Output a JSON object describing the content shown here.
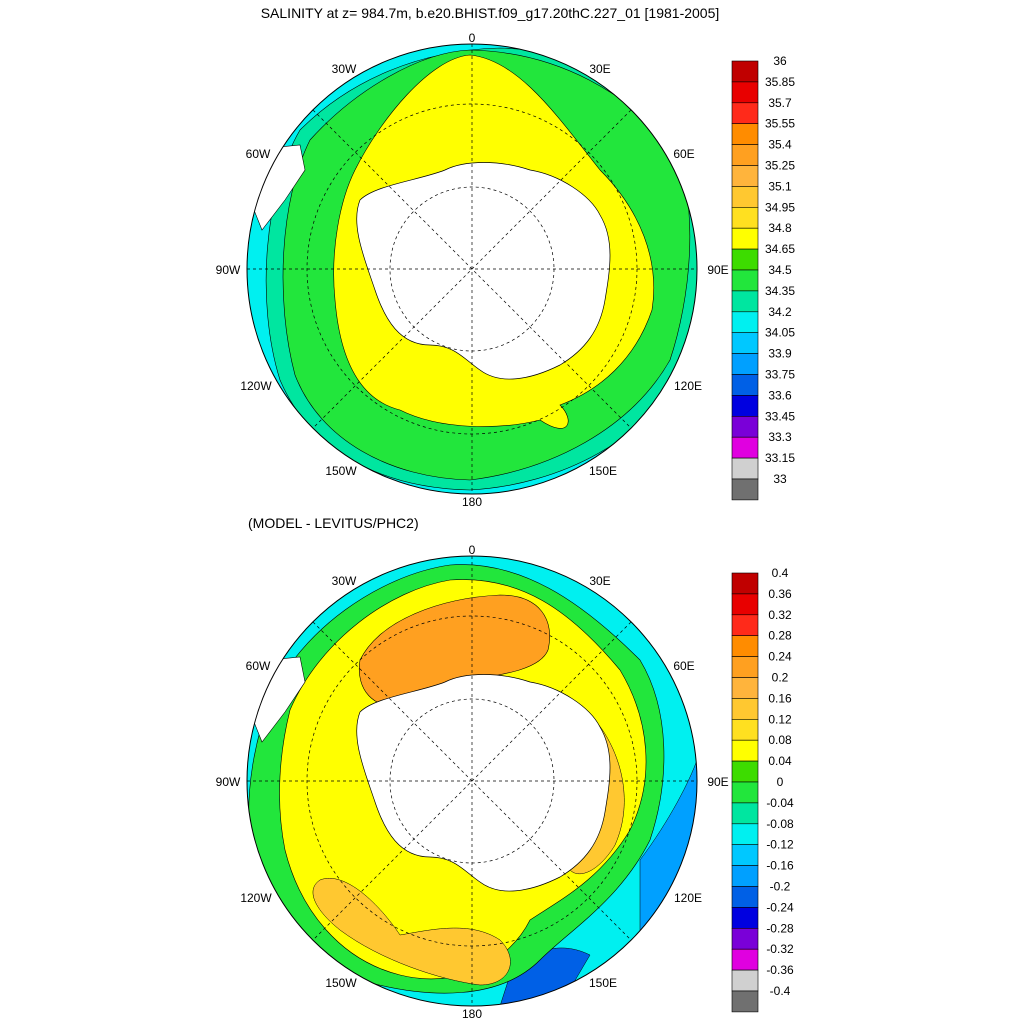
{
  "top_panel": {
    "title": "SALINITY at z= 984.7m, b.e20.BHIST.f09_g17.20thC.227_01 [1981-2005]",
    "colorbar": {
      "labels": [
        "36",
        "35.85",
        "35.7",
        "35.55",
        "35.4",
        "35.25",
        "35.1",
        "34.95",
        "34.8",
        "34.65",
        "34.5",
        "34.35",
        "34.2",
        "34.05",
        "33.9",
        "33.75",
        "33.6",
        "33.45",
        "33.3",
        "33.15",
        "33"
      ],
      "colors": [
        "#c00000",
        "#e80000",
        "#ff2a1a",
        "#ff8c00",
        "#ffa020",
        "#ffb43c",
        "#ffc830",
        "#ffe020",
        "#ffff00",
        "#3ddc00",
        "#22e63c",
        "#00e6a0",
        "#00f0f0",
        "#00c8ff",
        "#00a0ff",
        "#0060e6",
        "#0000e0",
        "#7a00d8",
        "#e000e0",
        "#d0d0d0",
        "#707070"
      ]
    },
    "regions": {
      "ring4": "#00f0f0",
      "ring3": "#00e6a0",
      "ring2": "#22e63c",
      "ring1": "#3ddc00",
      "inner": "#ffff00",
      "land": "#ffffff"
    }
  },
  "bottom_panel": {
    "title": "(MODEL - LEVITUS/PHC2)",
    "colorbar": {
      "labels": [
        "0.4",
        "0.36",
        "0.32",
        "0.28",
        "0.24",
        "0.2",
        "0.16",
        "0.12",
        "0.08",
        "0.04",
        "0",
        "-0.04",
        "-0.08",
        "-0.12",
        "-0.16",
        "-0.2",
        "-0.24",
        "-0.28",
        "-0.32",
        "-0.36",
        "-0.4"
      ],
      "colors": [
        "#c00000",
        "#e80000",
        "#ff2a1a",
        "#ff8c00",
        "#ffa020",
        "#ffb43c",
        "#ffc830",
        "#ffe020",
        "#ffff00",
        "#3ddc00",
        "#22e63c",
        "#00e6a0",
        "#00f0f0",
        "#00c8ff",
        "#00a0ff",
        "#0060e6",
        "#0000e0",
        "#7a00d8",
        "#e000e0",
        "#d0d0d0",
        "#707070"
      ]
    },
    "regions": {
      "outer": "#00f0f0",
      "mid": "#22e63c",
      "inner": "#ffff00",
      "warm": "#ffa020",
      "cold": "#0060e6",
      "land": "#ffffff"
    }
  },
  "longitude_labels": [
    "0",
    "30E",
    "60E",
    "90E",
    "120E",
    "150E",
    "180",
    "150W",
    "120W",
    "90W",
    "60W",
    "30W"
  ]
}
